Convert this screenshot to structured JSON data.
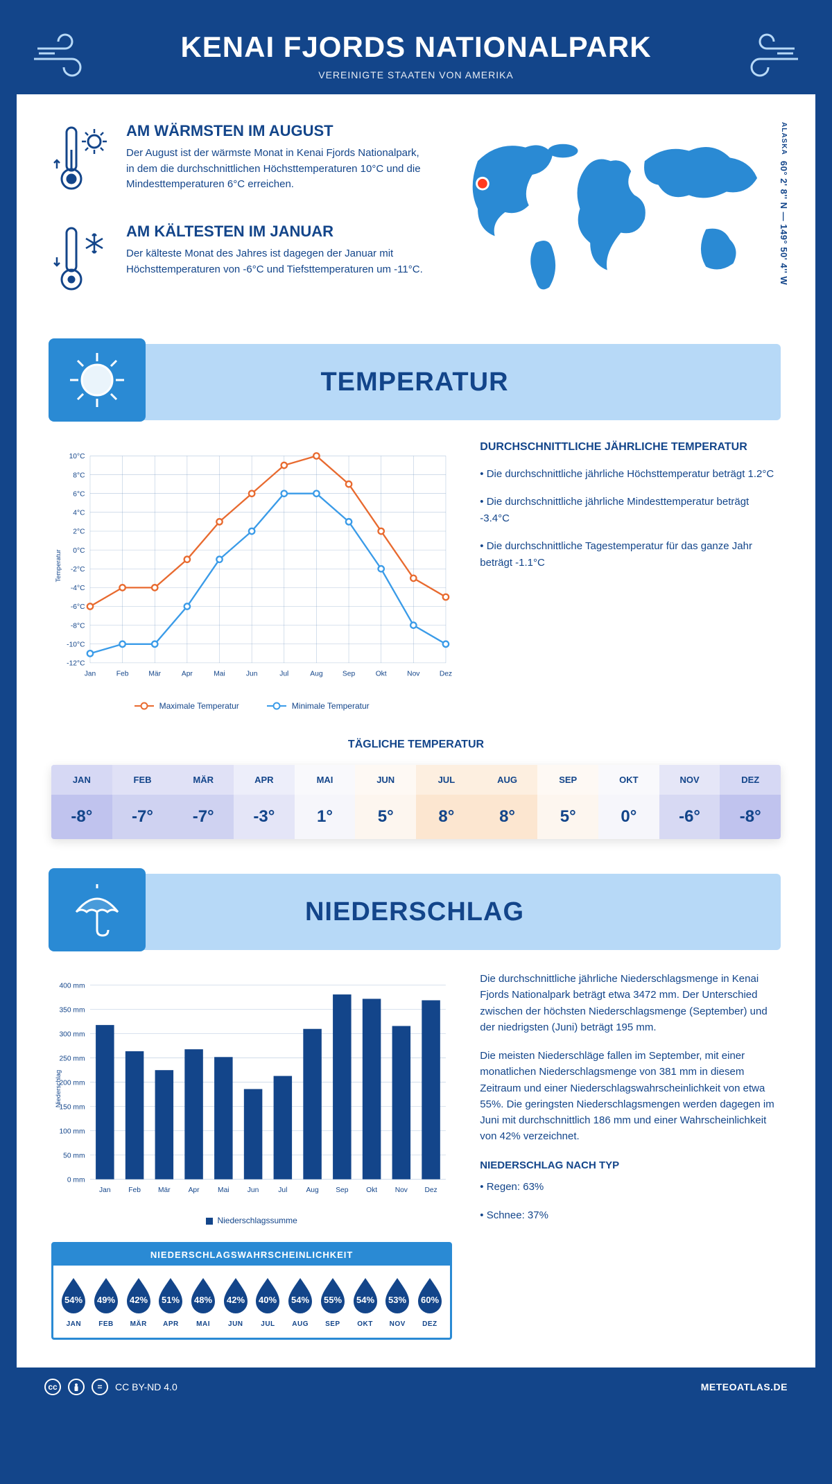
{
  "colors": {
    "primary": "#13458a",
    "accent_blue": "#2a8ad4",
    "light_blue": "#b7d9f7",
    "very_light_blue": "#e6f1fb",
    "orange": "#e86a2f",
    "line_blue": "#3a9be8",
    "white": "#ffffff",
    "marker": "#ff3b1f"
  },
  "header": {
    "title": "KENAI FJORDS NATIONALPARK",
    "subtitle": "VEREINIGTE STAATEN VON AMERIKA"
  },
  "coords": {
    "text": "60° 2' 8'' N — 149° 50' 4'' W",
    "region": "ALASKA"
  },
  "facts": {
    "warm": {
      "title": "AM WÄRMSTEN IM AUGUST",
      "body": "Der August ist der wärmste Monat in Kenai Fjords Nationalpark, in dem die durchschnittlichen Höchsttemperaturen 10°C und die Mindesttemperaturen 6°C erreichen."
    },
    "cold": {
      "title": "AM KÄLTESTEN IM JANUAR",
      "body": "Der kälteste Monat des Jahres ist dagegen der Januar mit Höchsttemperaturen von -6°C und Tiefsttemperaturen um -11°C."
    }
  },
  "sections": {
    "temp": "TEMPERATUR",
    "precip": "NIEDERSCHLAG"
  },
  "months": [
    "Jan",
    "Feb",
    "Mär",
    "Apr",
    "Mai",
    "Jun",
    "Jul",
    "Aug",
    "Sep",
    "Okt",
    "Nov",
    "Dez"
  ],
  "months_uc": [
    "JAN",
    "FEB",
    "MÄR",
    "APR",
    "MAI",
    "JUN",
    "JUL",
    "AUG",
    "SEP",
    "OKT",
    "NOV",
    "DEZ"
  ],
  "temp_chart": {
    "type": "line",
    "y_label": "Temperatur",
    "ylim": [
      -12,
      10
    ],
    "ystep": 2,
    "series": {
      "max": {
        "label": "Maximale Temperatur",
        "color": "#e86a2f",
        "values": [
          -6,
          -4,
          -4,
          -1,
          3,
          6,
          9,
          10,
          7,
          2,
          -3,
          -5
        ]
      },
      "min": {
        "label": "Minimale Temperatur",
        "color": "#3a9be8",
        "values": [
          -11,
          -10,
          -10,
          -6,
          -1,
          2,
          6,
          6,
          3,
          -2,
          -8,
          -10
        ]
      }
    }
  },
  "temp_side": {
    "heading": "DURCHSCHNITTLICHE JÄHRLICHE TEMPERATUR",
    "b1": "• Die durchschnittliche jährliche Höchsttemperatur beträgt 1.2°C",
    "b2": "• Die durchschnittliche jährliche Mindesttemperatur beträgt -3.4°C",
    "b3": "• Die durchschnittliche Tagestemperatur für das ganze Jahr beträgt -1.1°C"
  },
  "daily": {
    "title": "TÄGLICHE TEMPERATUR",
    "values": [
      "-8°",
      "-7°",
      "-7°",
      "-3°",
      "1°",
      "5°",
      "8°",
      "8°",
      "5°",
      "0°",
      "-6°",
      "-8°"
    ],
    "bg": [
      "#c0c3ee",
      "#cfd2f1",
      "#cfd2f1",
      "#e4e5f7",
      "#f6f6fb",
      "#fdf6ef",
      "#fce6d0",
      "#fce6d0",
      "#fdf6ef",
      "#f6f6fb",
      "#d7d9f3",
      "#c0c3ee"
    ]
  },
  "precip_chart": {
    "type": "bar",
    "y_label": "Niederschlag",
    "ylim": [
      0,
      400
    ],
    "ystep": 50,
    "bar_color": "#13458a",
    "legend": "Niederschlagssumme",
    "values": [
      318,
      264,
      225,
      268,
      252,
      186,
      213,
      310,
      381,
      372,
      316,
      369
    ]
  },
  "precip_text": {
    "p1": "Die durchschnittliche jährliche Niederschlagsmenge in Kenai Fjords Nationalpark beträgt etwa 3472 mm. Der Unterschied zwischen der höchsten Niederschlagsmenge (September) und der niedrigsten (Juni) beträgt 195 mm.",
    "p2": "Die meisten Niederschläge fallen im September, mit einer monatlichen Niederschlagsmenge von 381 mm in diesem Zeitraum und einer Niederschlagswahrscheinlichkeit von etwa 55%. Die geringsten Niederschlagsmengen werden dagegen im Juni mit durchschnittlich 186 mm und einer Wahrscheinlichkeit von 42% verzeichnet.",
    "type_h": "NIEDERSCHLAG NACH TYP",
    "t1": "• Regen: 63%",
    "t2": "• Schnee: 37%"
  },
  "prob": {
    "title": "NIEDERSCHLAGSWAHRSCHEINLICHKEIT",
    "values": [
      "54%",
      "49%",
      "42%",
      "51%",
      "48%",
      "42%",
      "40%",
      "54%",
      "55%",
      "54%",
      "53%",
      "60%"
    ]
  },
  "footer": {
    "license": "CC BY-ND 4.0",
    "site": "METEOATLAS.DE"
  }
}
